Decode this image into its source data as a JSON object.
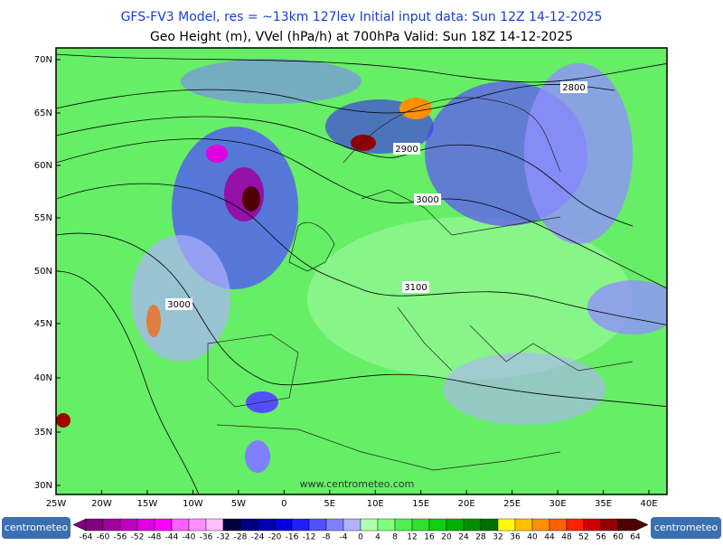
{
  "header": {
    "line1": "GFS-FV3 Model, res = ~13km 127lev    Initial input data: Sun 12Z 14-12-2025",
    "line2": "Geo Height (m), VVel (hPa/h) at 700hPa  Valid: Sun 18Z 14-12-2025"
  },
  "map": {
    "lat_labels": [
      "70N",
      "65N",
      "60N",
      "55N",
      "50N",
      "45N",
      "40N",
      "35N",
      "30N"
    ],
    "lon_labels": [
      "25W",
      "20W",
      "15W",
      "10W",
      "5W",
      "0",
      "5E",
      "10E",
      "15E",
      "20E",
      "25E",
      "30E",
      "35E",
      "40E"
    ],
    "contour_labels": [
      "2800",
      "2900",
      "3000",
      "3100",
      "3000"
    ],
    "watermark": "www.centrometeo.com"
  },
  "colorbar": {
    "labels": [
      "-64",
      "-60",
      "-56",
      "-52",
      "-48",
      "-44",
      "-40",
      "-36",
      "-32",
      "-28",
      "-24",
      "-20",
      "-16",
      "-12",
      "-8",
      "-4",
      "0",
      "4",
      "8",
      "12",
      "16",
      "20",
      "24",
      "28",
      "32",
      "36",
      "40",
      "44",
      "48",
      "52",
      "56",
      "60",
      "64"
    ],
    "colors": [
      "#800080",
      "#a000a0",
      "#c000c0",
      "#e000e0",
      "#ff00ff",
      "#ff60ff",
      "#ff90ff",
      "#ffc0ff",
      "#000040",
      "#000080",
      "#0000b0",
      "#0000e0",
      "#2020ff",
      "#5050ff",
      "#8080ff",
      "#b0b0ff",
      "#b0ffb0",
      "#80ff80",
      "#50f050",
      "#30e030",
      "#10d010",
      "#00b000",
      "#009000",
      "#007000",
      "#ffff00",
      "#ffc000",
      "#ff9000",
      "#ff6000",
      "#ff2000",
      "#d00000",
      "#900000",
      "#500000"
    ]
  },
  "logos": {
    "left": "centrometeo",
    "right": "centrometeo"
  }
}
